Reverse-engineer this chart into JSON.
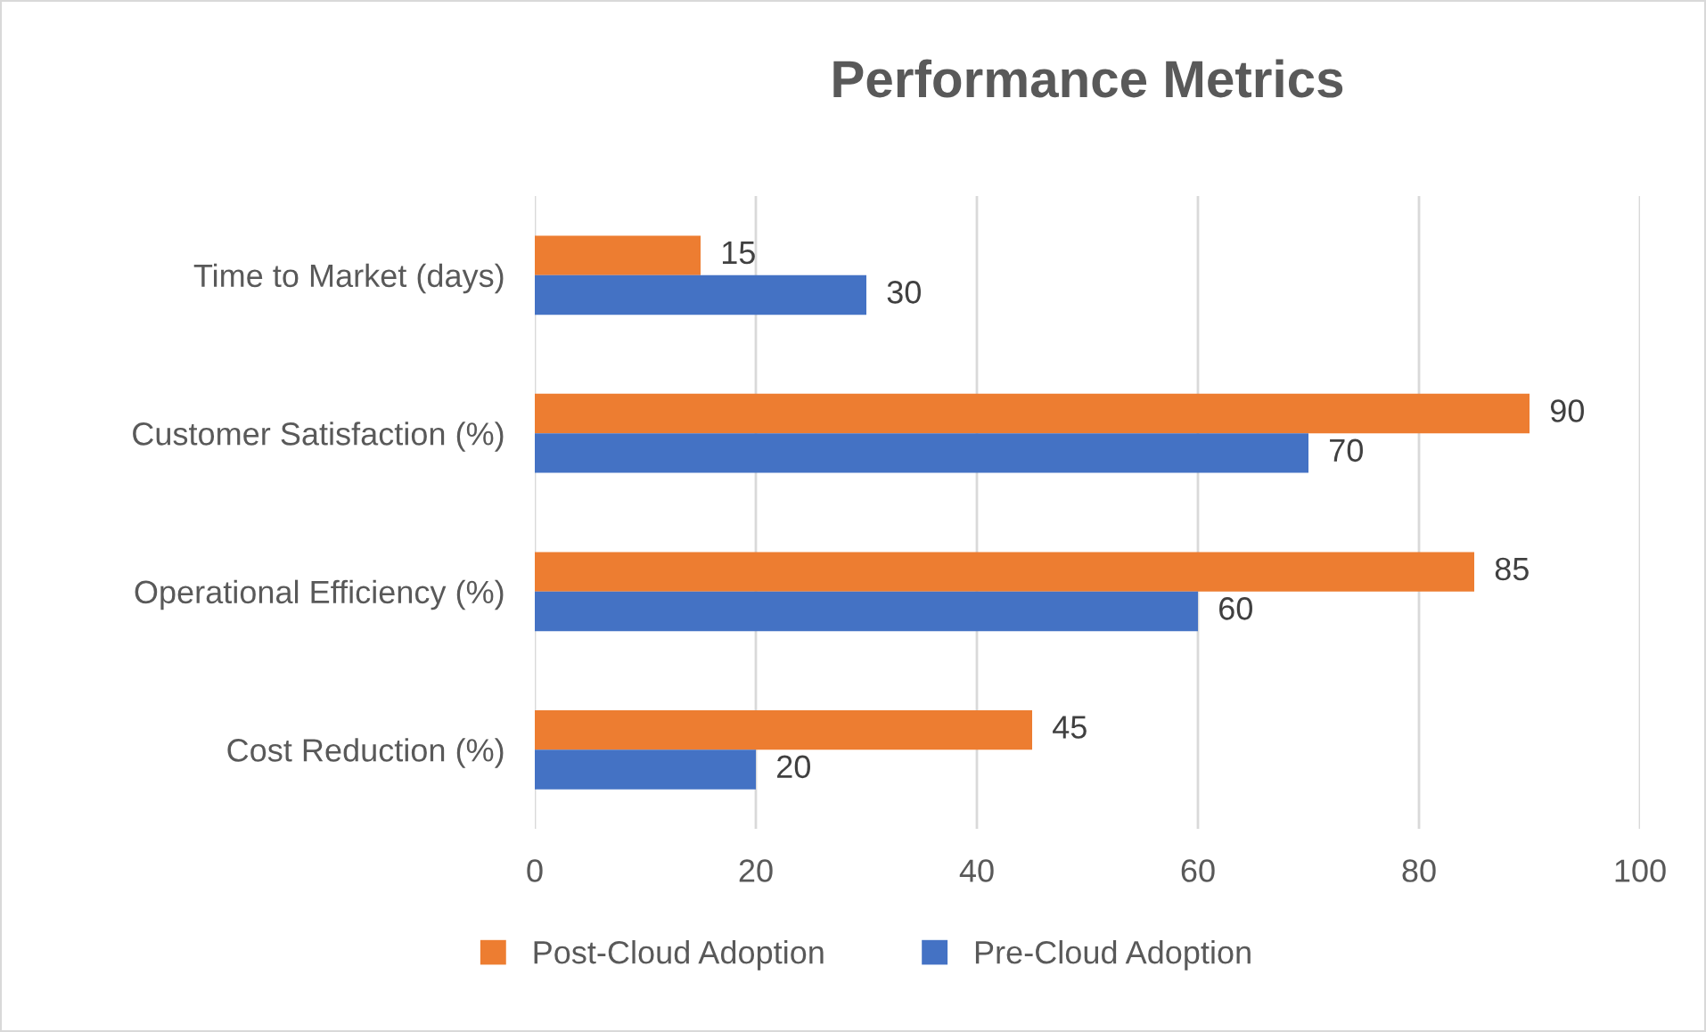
{
  "chart_data": {
    "type": "bar",
    "orientation": "horizontal",
    "title": "Performance Metrics",
    "categories": [
      "Time to Market (days)",
      "Customer Satisfaction (%)",
      "Operational Efficiency (%)",
      "Cost Reduction (%)"
    ],
    "series": [
      {
        "name": "Post-Cloud Adoption",
        "color": "#ed7d31",
        "values": [
          15,
          90,
          85,
          45
        ]
      },
      {
        "name": "Pre-Cloud Adoption",
        "color": "#4472c4",
        "values": [
          30,
          70,
          60,
          20
        ]
      }
    ],
    "xlim": [
      0,
      100
    ],
    "xticks": [
      0,
      20,
      40,
      60,
      80,
      100
    ],
    "grid": "x",
    "legend": "bottom",
    "data_labels": true
  }
}
